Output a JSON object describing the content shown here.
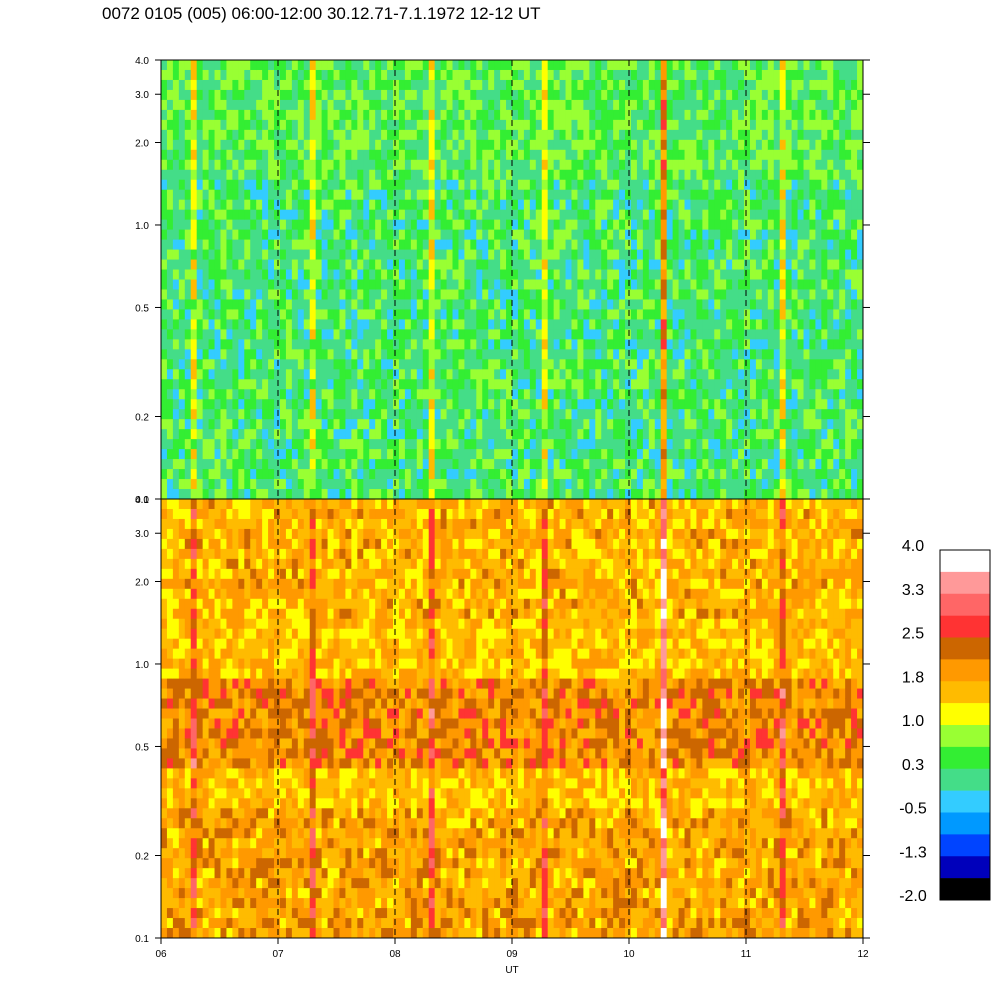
{
  "title": "0072 0105 (005) 06:00-12:00 30.12.71-7.1.1972  12-12 UT",
  "chart_data": {
    "type": "heatmap",
    "title": "0072 0105 (005) 06:00-12:00 30.12.71-7.1.1972  12-12 UT",
    "xlabel": "UT",
    "x_ticks": [
      "06",
      "07",
      "08",
      "09",
      "10",
      "11",
      "12"
    ],
    "x_range": [
      6,
      12
    ],
    "y_scale": "log",
    "y_range": [
      0.1,
      4.0
    ],
    "y_ticks": [
      {
        "value": 0.1,
        "label": "0.1"
      },
      {
        "value": 0.2,
        "label": "0.2"
      },
      {
        "value": 0.5,
        "label": "0.5"
      },
      {
        "value": 1.0,
        "label": "1.0"
      },
      {
        "value": 2.0,
        "label": "2.0"
      },
      {
        "value": 3.0,
        "label": "3.0"
      },
      {
        "value": 4.0,
        "label": "4.0"
      }
    ],
    "vertical_dashed_lines_at": [
      7,
      8,
      9,
      10,
      11
    ],
    "panels": [
      {
        "name": "upper",
        "dominant_level": 0.3,
        "band_0p5_level": 0.0
      },
      {
        "name": "lower",
        "dominant_level": 1.6,
        "band_0p5_level": 1.8
      }
    ],
    "bursts_x": [
      6.3,
      7.3,
      8.3,
      9.3,
      10.3,
      11.3
    ],
    "strong_burst_x": 10.3,
    "colorbar": {
      "labels": [
        "4.0",
        "3.3",
        "2.5",
        "1.8",
        "1.0",
        "0.3",
        "-0.5",
        "-1.3",
        "-2.0"
      ],
      "colors": [
        "#ffffff",
        "#ff9999",
        "#ff6666",
        "#ff3333",
        "#cc6600",
        "#ff9900",
        "#ffbb00",
        "#ffff00",
        "#99ff33",
        "#33ee33",
        "#44dd88",
        "#33ccff",
        "#0099ff",
        "#0044ff",
        "#0000bb",
        "#000000"
      ]
    }
  }
}
